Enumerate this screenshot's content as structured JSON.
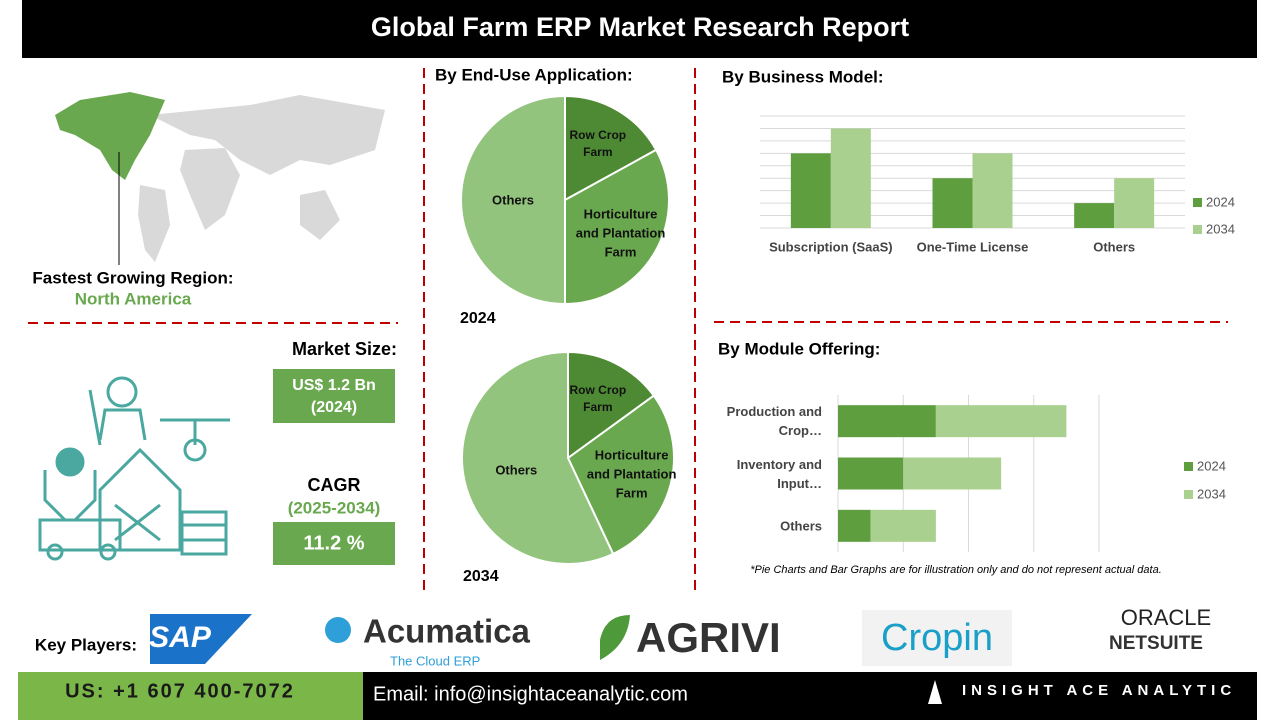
{
  "header": {
    "title": "Global Farm ERP Market Research Report"
  },
  "region": {
    "label": "Fastest Growing Region:",
    "value": "North America"
  },
  "market_size": {
    "label": "Market Size:",
    "value": "US$ 1.2 Bn",
    "year": "(2024)"
  },
  "cagr": {
    "label": "CAGR",
    "period": "(2025-2034)",
    "value": "11.2 %"
  },
  "chart_data": [
    {
      "type": "pie",
      "title": "By End-Use Application:",
      "subtitle": "2024",
      "categories": [
        "Row Crop Farm",
        "Horticulture and Plantation Farm",
        "Others"
      ],
      "values": [
        17,
        33,
        50
      ],
      "colors": [
        "#4e8a34",
        "#6aa84f",
        "#93c47d"
      ]
    },
    {
      "type": "pie",
      "subtitle": "2034",
      "categories": [
        "Row Crop Farm",
        "Horticulture and Plantation Farm",
        "Others"
      ],
      "values": [
        15,
        28,
        57
      ],
      "colors": [
        "#4e8a34",
        "#6aa84f",
        "#93c47d"
      ]
    },
    {
      "type": "bar",
      "title": "By Business Model:",
      "categories": [
        "Subscription (SaaS)",
        "One-Time License",
        "Others"
      ],
      "series": [
        {
          "name": "2024",
          "color": "#5f9e3f",
          "values": [
            6,
            4,
            2
          ]
        },
        {
          "name": "2034",
          "color": "#a9d08e",
          "values": [
            8,
            6,
            4
          ]
        }
      ],
      "ylim": [
        0,
        9
      ],
      "yticks": [
        0,
        1,
        2,
        3,
        4,
        5,
        6,
        7,
        8,
        9
      ],
      "grid": true,
      "tick_labels": false,
      "legend": "right"
    },
    {
      "type": "stacked-barh",
      "title": "By Module Offering:",
      "categories": [
        "Production and Crop…",
        "Inventory and Input…",
        "Others"
      ],
      "series": [
        {
          "name": "2024",
          "color": "#5f9e3f",
          "values": [
            1.5,
            1,
            0.5
          ]
        },
        {
          "name": "2034",
          "color": "#a9d08e",
          "values": [
            2,
            1.5,
            1
          ]
        }
      ],
      "xlim": [
        0,
        4
      ],
      "xticks": [
        0,
        1,
        2,
        3,
        4
      ],
      "grid": true,
      "tick_labels": false,
      "legend": "right"
    }
  ],
  "footnote": "*Pie Charts and Bar Graphs are for illustration only and do not represent actual data.",
  "key_players": {
    "label": "Key Players:",
    "logos": [
      "SAP",
      "Acumatica",
      "The Cloud ERP",
      "AGRIVI",
      "Cropin",
      "ORACLE",
      "NETSUITE"
    ]
  },
  "footer": {
    "phone": "US: +1 607 400-7072",
    "email": "Email: info@insightaceanalytic.com",
    "brand": "INSIGHT ACE ANALYTIC"
  }
}
